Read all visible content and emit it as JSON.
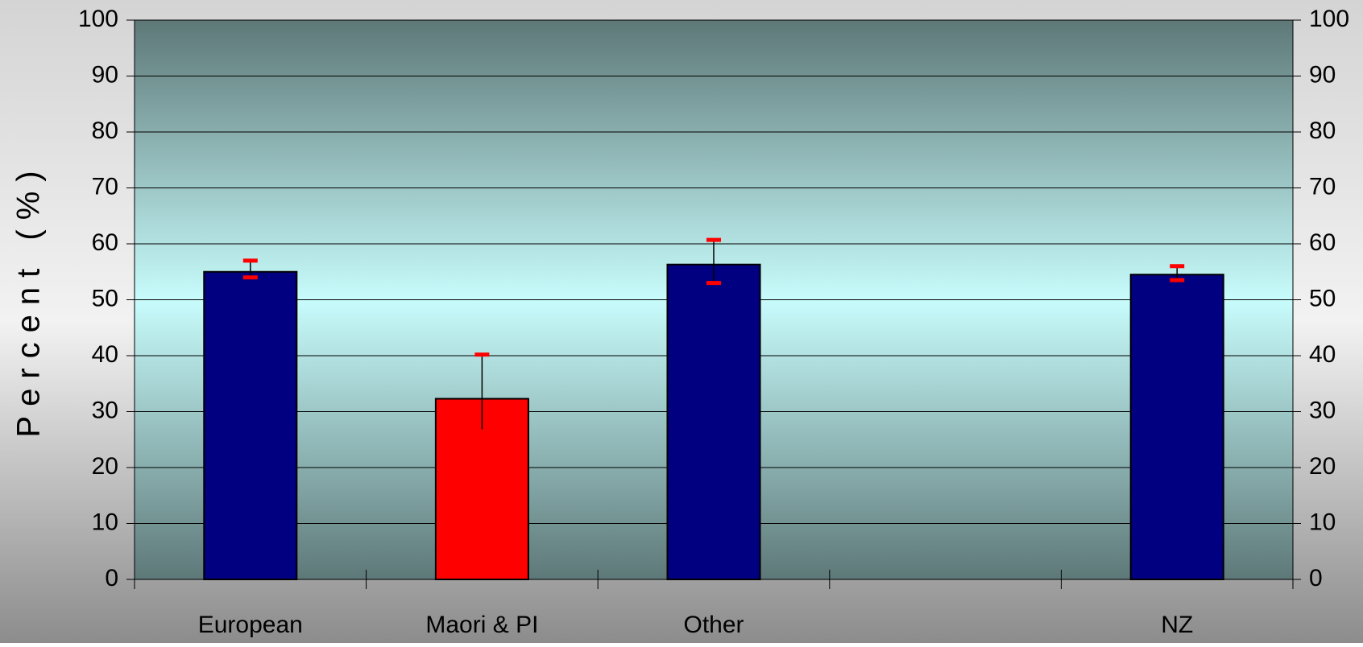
{
  "chart_data": {
    "type": "bar",
    "y_label": "Percent (%)",
    "categories": [
      "European",
      "Maori & PI",
      "Other",
      null,
      "NZ"
    ],
    "values": [
      55,
      32.3,
      56.3,
      null,
      54.5
    ],
    "error_minus": [
      1,
      5.8,
      3.3,
      null,
      1
    ],
    "error_plus": [
      2,
      7.9,
      4.4,
      null,
      1.5
    ],
    "colors": [
      "#000080",
      "#ff0000",
      "#000080",
      null,
      "#000080"
    ],
    "error_cap_color": "#ff0000",
    "ylim": [
      0,
      100
    ],
    "yticks": [
      0,
      10,
      20,
      30,
      40,
      50,
      60,
      70,
      80,
      90,
      100
    ],
    "y2lim": [
      0,
      100
    ],
    "y2ticks": [
      0,
      10,
      20,
      30,
      40,
      50,
      60,
      70,
      80,
      90,
      100
    ],
    "grid": true
  }
}
